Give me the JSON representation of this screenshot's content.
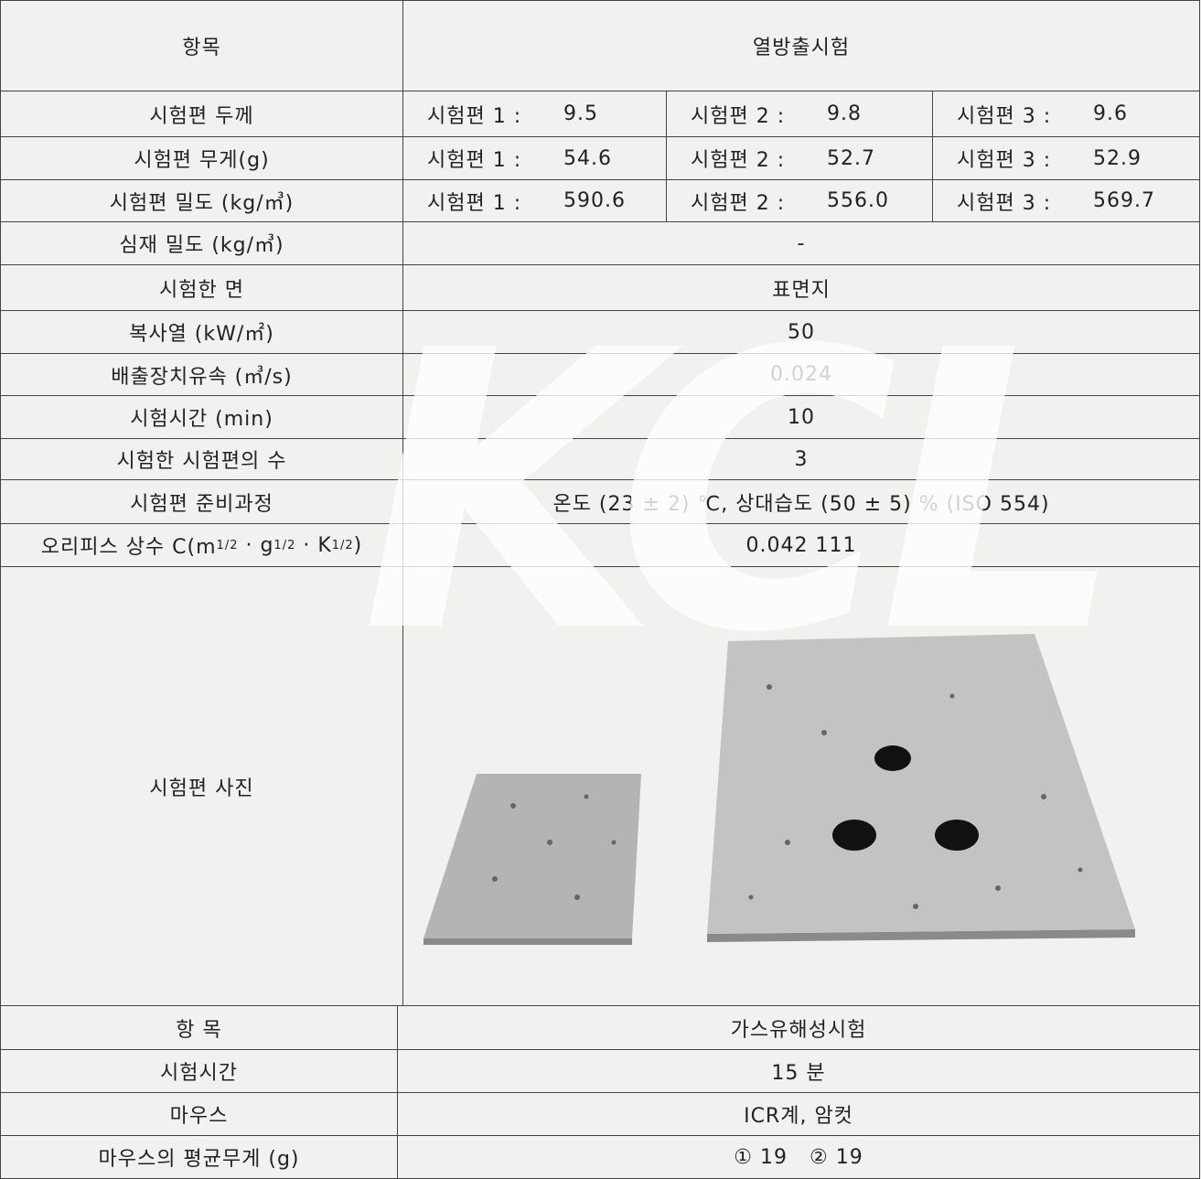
{
  "heat_release": {
    "header": [
      "항목",
      "열방출시험"
    ],
    "specimen_rows": [
      {
        "label": "시험편 두께",
        "cells": [
          [
            "시험편 1 :",
            "9.5"
          ],
          [
            "시험편 2 :",
            "9.8"
          ],
          [
            "시험편 3 :",
            "9.6"
          ]
        ]
      },
      {
        "label": "시험편 무게(g)",
        "cells": [
          [
            "시험편 1 :",
            "54.6"
          ],
          [
            "시험편 2 :",
            "52.7"
          ],
          [
            "시험편 3 :",
            "52.9"
          ]
        ]
      },
      {
        "label": "시험편 밀도 (kg/㎥)",
        "cells": [
          [
            "시험편 1 :",
            "590.6"
          ],
          [
            "시험편 2 :",
            "556.0"
          ],
          [
            "시험편 3 :",
            "569.7"
          ]
        ]
      }
    ],
    "rows": [
      [
        "심재 밀도 (kg/㎥)",
        "-"
      ],
      [
        "시험한 면",
        "표면지"
      ],
      [
        "복사열 (kW/㎡)",
        "50"
      ],
      [
        "배출장치유속 (㎥/s)",
        "0.024"
      ],
      [
        "시험시간 (min)",
        "10"
      ],
      [
        "시험한 시험편의 수",
        "3"
      ],
      [
        "시험편 준비과정",
        "온도 (23 ± 2) ℃, 상대습도 (50 ± 5) % (ISO 554)"
      ]
    ],
    "orifice": {
      "label_parts": [
        "오리피스 상수 C(m",
        "1/2",
        " · g",
        "1/2",
        " · K",
        "1/2",
        ")"
      ],
      "value": "0.042 111"
    },
    "photo_label": "시험편 사진"
  },
  "gas_toxicity": {
    "rows": [
      [
        "항 목",
        "가스유해성시험"
      ],
      [
        "시험시간",
        "15 분"
      ],
      [
        "마우스",
        "ICR계, 암컷"
      ],
      [
        "마우스의 평균무게 (g)",
        "① 19   ② 19"
      ]
    ]
  },
  "watermark": "KCL"
}
